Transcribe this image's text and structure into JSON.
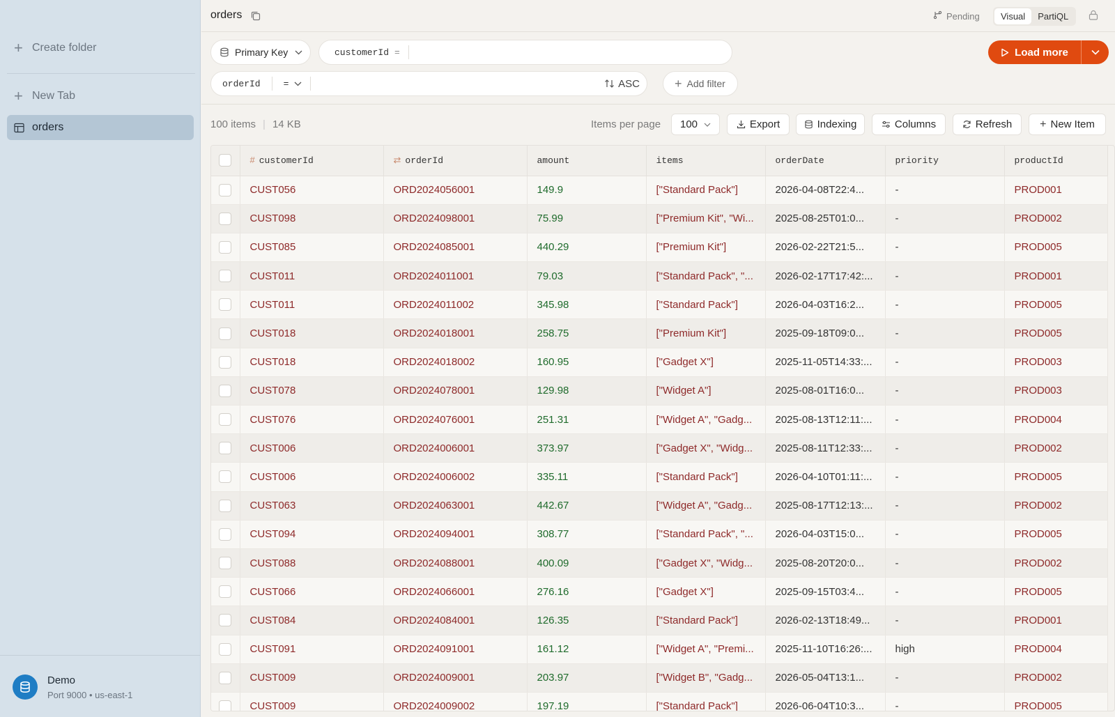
{
  "sidebar": {
    "create_folder": "Create folder",
    "new_tab": "New Tab",
    "tables": [
      {
        "label": "orders"
      }
    ],
    "connection": {
      "name": "Demo",
      "details": "Port 9000 • us-east-1"
    }
  },
  "header": {
    "title": "orders",
    "pending": "Pending",
    "modes": [
      "Visual",
      "PartiQL"
    ],
    "active_mode": "Visual"
  },
  "query": {
    "index": "Primary Key",
    "pk_field": "customerId",
    "pk_op": "=",
    "sk_field": "orderId",
    "sk_op": "=",
    "sort": "ASC",
    "add_filter": "Add filter",
    "load_more": "Load more"
  },
  "toolbar": {
    "item_count": "100 items",
    "size": "14 KB",
    "items_per_page_label": "Items per page",
    "items_per_page": "100",
    "export": "Export",
    "indexing": "Indexing",
    "columns": "Columns",
    "refresh": "Refresh",
    "new_item": "New Item"
  },
  "table": {
    "columns": [
      "customerId",
      "orderId",
      "amount",
      "items",
      "orderDate",
      "priority",
      "productId"
    ],
    "rows": [
      [
        "CUST056",
        "ORD2024056001",
        "149.9",
        "[\"Standard Pack\"]",
        "2026-04-08T22:4...",
        "-",
        "PROD001"
      ],
      [
        "CUST098",
        "ORD2024098001",
        "75.99",
        "[\"Premium Kit\", \"Wi...",
        "2025-08-25T01:0...",
        "-",
        "PROD002"
      ],
      [
        "CUST085",
        "ORD2024085001",
        "440.29",
        "[\"Premium Kit\"]",
        "2026-02-22T21:5...",
        "-",
        "PROD005"
      ],
      [
        "CUST011",
        "ORD2024011001",
        "79.03",
        "[\"Standard Pack\", \"...",
        "2026-02-17T17:42:...",
        "-",
        "PROD001"
      ],
      [
        "CUST011",
        "ORD2024011002",
        "345.98",
        "[\"Standard Pack\"]",
        "2026-04-03T16:2...",
        "-",
        "PROD005"
      ],
      [
        "CUST018",
        "ORD2024018001",
        "258.75",
        "[\"Premium Kit\"]",
        "2025-09-18T09:0...",
        "-",
        "PROD005"
      ],
      [
        "CUST018",
        "ORD2024018002",
        "160.95",
        "[\"Gadget X\"]",
        "2025-11-05T14:33:...",
        "-",
        "PROD003"
      ],
      [
        "CUST078",
        "ORD2024078001",
        "129.98",
        "[\"Widget A\"]",
        "2025-08-01T16:0...",
        "-",
        "PROD003"
      ],
      [
        "CUST076",
        "ORD2024076001",
        "251.31",
        "[\"Widget A\", \"Gadg...",
        "2025-08-13T12:11:...",
        "-",
        "PROD004"
      ],
      [
        "CUST006",
        "ORD2024006001",
        "373.97",
        "[\"Gadget X\", \"Widg...",
        "2025-08-11T12:33:...",
        "-",
        "PROD002"
      ],
      [
        "CUST006",
        "ORD2024006002",
        "335.11",
        "[\"Standard Pack\"]",
        "2026-04-10T01:11:...",
        "-",
        "PROD005"
      ],
      [
        "CUST063",
        "ORD2024063001",
        "442.67",
        "[\"Widget A\", \"Gadg...",
        "2025-08-17T12:13:...",
        "-",
        "PROD002"
      ],
      [
        "CUST094",
        "ORD2024094001",
        "308.77",
        "[\"Standard Pack\", \"...",
        "2026-04-03T15:0...",
        "-",
        "PROD005"
      ],
      [
        "CUST088",
        "ORD2024088001",
        "400.09",
        "[\"Gadget X\", \"Widg...",
        "2025-08-20T20:0...",
        "-",
        "PROD002"
      ],
      [
        "CUST066",
        "ORD2024066001",
        "276.16",
        "[\"Gadget X\"]",
        "2025-09-15T03:4...",
        "-",
        "PROD005"
      ],
      [
        "CUST084",
        "ORD2024084001",
        "126.35",
        "[\"Standard Pack\"]",
        "2026-02-13T18:49...",
        "-",
        "PROD001"
      ],
      [
        "CUST091",
        "ORD2024091001",
        "161.12",
        "[\"Widget A\", \"Premi...",
        "2025-11-10T16:26:...",
        "high",
        "PROD004"
      ],
      [
        "CUST009",
        "ORD2024009001",
        "203.97",
        "[\"Widget B\", \"Gadg...",
        "2026-05-04T13:1...",
        "-",
        "PROD002"
      ],
      [
        "CUST009",
        "ORD2024009002",
        "197.19",
        "[\"Standard Pack\"]",
        "2026-06-04T10:3...",
        "-",
        "PROD005"
      ]
    ]
  },
  "colors": {
    "accent": "#e04a10",
    "string": "#8e2a2a",
    "number": "#1f6b2c",
    "sidebar_bg": "#d6e1ea"
  }
}
